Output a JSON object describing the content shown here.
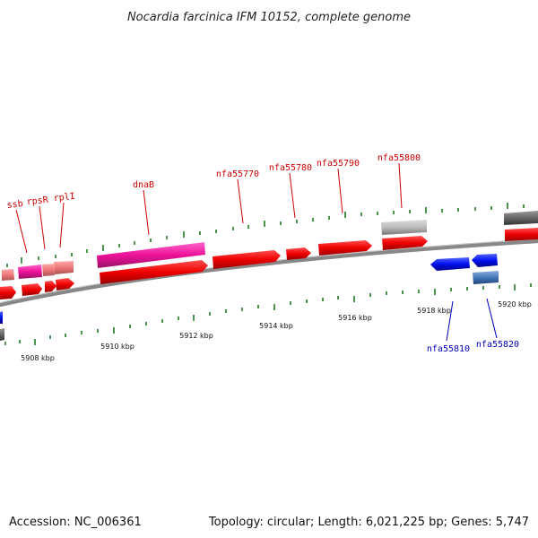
{
  "title": "Nocardia farcinica IFM 10152, complete genome",
  "footer": {
    "accession": "Accession: NC_006361",
    "summary": "Topology: circular; Length: 6,021,225 bp; Genes: 5,747"
  },
  "colors": {
    "forward_label": "#cc0000",
    "reverse_label": "#0000bb",
    "tick": "#1f7a1f",
    "backbone": "#777777"
  },
  "kbp_labels": [
    "5908 kbp",
    "5910 kbp",
    "5912 kbp",
    "5914 kbp",
    "5916 kbp",
    "5918 kbp",
    "5920 kbp"
  ],
  "gene_labels_forward": [
    "ssb",
    "rpsR",
    "rplI",
    "dnaB",
    "nfa55770",
    "nfa55780",
    "nfa55790",
    "nfa55800"
  ],
  "gene_labels_reverse": [
    "nfa55810",
    "nfa55820"
  ]
}
